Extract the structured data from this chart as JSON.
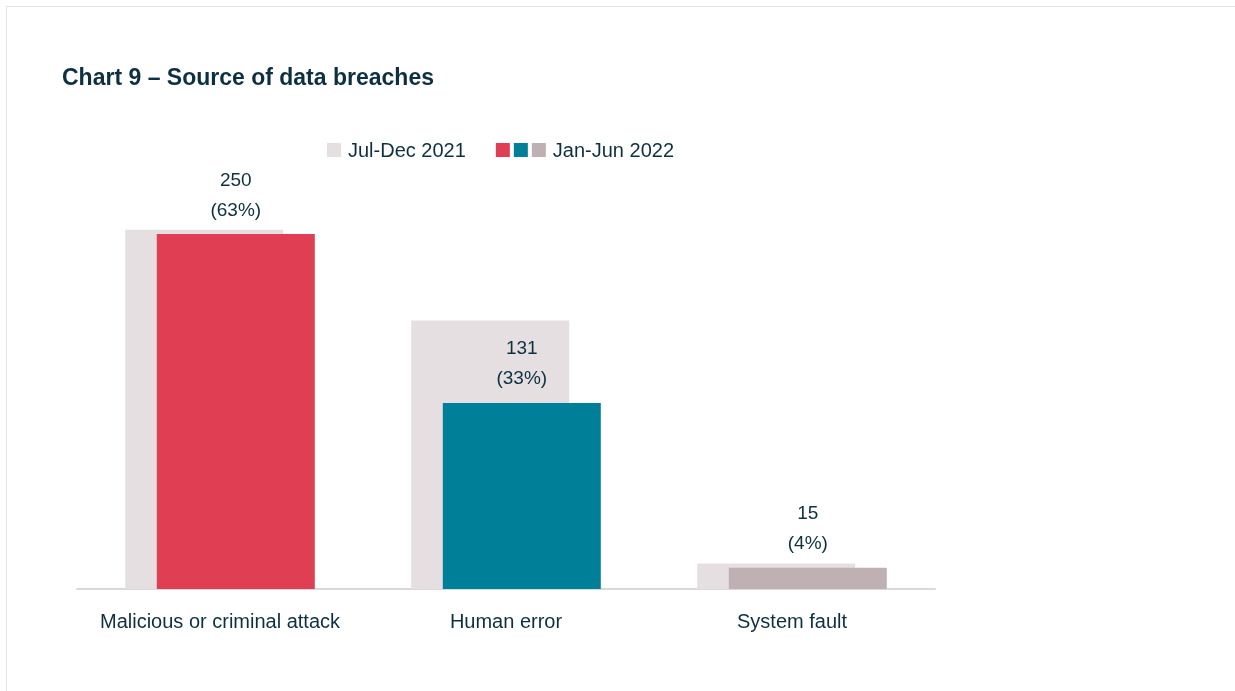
{
  "chart_data": {
    "type": "bar",
    "title": "Chart 9 – Source of data breaches",
    "categories": [
      "Malicious or criminal attack",
      "Human error",
      "System fault"
    ],
    "series": [
      {
        "name": "Jul-Dec 2021",
        "color": "#e5dfe1",
        "values": [
          253,
          189,
          18
        ]
      },
      {
        "name": "Jan-Jun 2022",
        "colors": [
          "#e03e52",
          "#007f99",
          "#bfb0b4"
        ],
        "values": [
          250,
          131,
          15
        ],
        "value_labels": [
          "250\n(63%)",
          "131\n(33%)",
          "15\n(4%)"
        ]
      }
    ],
    "legend": "top"
  }
}
